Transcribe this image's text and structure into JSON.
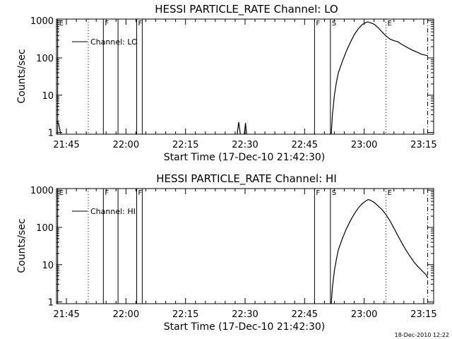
{
  "chart_data": [
    {
      "type": "line",
      "title": "HESSI PARTICLE_RATE Channel: LO",
      "xlabel": "Start Time (17-Dec-10 21:42:30)",
      "ylabel": "Counts/sec",
      "x_unit": "minutes since 21:42:30",
      "xlim": [
        0,
        95
      ],
      "ylim": [
        0.9,
        1100
      ],
      "yscale": "log",
      "grid": false,
      "legend": {
        "position": "top-left",
        "entries": [
          "Channel: LO"
        ]
      },
      "x_ticks": [
        {
          "x": 2.5,
          "label": "21:45"
        },
        {
          "x": 17.5,
          "label": "22:00"
        },
        {
          "x": 32.5,
          "label": "22:15"
        },
        {
          "x": 47.5,
          "label": "22:30"
        },
        {
          "x": 62.5,
          "label": "22:45"
        },
        {
          "x": 77.5,
          "label": "23:00"
        },
        {
          "x": 92.5,
          "label": "23:15"
        }
      ],
      "y_ticks": [
        {
          "y": 1,
          "label": "1"
        },
        {
          "x": 0,
          "y": 10,
          "label": "10"
        },
        {
          "y": 100,
          "label": "100"
        },
        {
          "y": 1000,
          "label": "1000"
        }
      ],
      "markers": [
        {
          "x": 0.3,
          "label": "E",
          "style": "solid"
        },
        {
          "x": 8.0,
          "label": "",
          "style": "dotted"
        },
        {
          "x": 11.8,
          "label": "F",
          "style": "solid"
        },
        {
          "x": 15.5,
          "label": "",
          "style": "solid"
        },
        {
          "x": 20.2,
          "label": "F",
          "style": "solid"
        },
        {
          "x": 21.6,
          "label": "",
          "style": "solid"
        },
        {
          "x": 65.0,
          "label": "F",
          "style": "solid"
        },
        {
          "x": 69.0,
          "label": "S",
          "style": "solid"
        },
        {
          "x": 83.0,
          "label": "E",
          "style": "dotted"
        },
        {
          "x": 93.5,
          "label": "",
          "style": "dashdot"
        }
      ],
      "series": [
        {
          "name": "Channel: LO",
          "segments": [
            [
              [
                0,
                1.8
              ],
              [
                0.5,
                1.8
              ],
              [
                0.9,
                1.1
              ],
              [
                1.1,
                0.9
              ]
            ],
            [
              [
                45.5,
                0.9
              ],
              [
                45.9,
                1.9
              ],
              [
                46.3,
                0.9
              ]
            ],
            [
              [
                47.3,
                0.9
              ],
              [
                47.6,
                1.8
              ],
              [
                47.9,
                0.9
              ]
            ],
            [
              [
                69.2,
                0.9
              ],
              [
                69.5,
                3
              ],
              [
                70,
                10
              ],
              [
                70.5,
                22
              ],
              [
                71,
                40
              ],
              [
                72,
                80
              ],
              [
                73,
                150
              ],
              [
                74,
                260
              ],
              [
                75,
                420
              ],
              [
                76,
                600
              ],
              [
                77,
                780
              ],
              [
                78,
                900
              ],
              [
                78.5,
                920
              ],
              [
                79,
                880
              ],
              [
                80,
                800
              ],
              [
                81,
                650
              ],
              [
                82,
                500
              ],
              [
                83,
                390
              ],
              [
                84,
                320
              ],
              [
                85,
                290
              ],
              [
                86,
                270
              ],
              [
                87,
                230
              ],
              [
                88,
                200
              ],
              [
                89,
                175
              ],
              [
                90,
                155
              ],
              [
                91,
                140
              ],
              [
                92,
                125
              ],
              [
                93,
                118
              ],
              [
                93.5,
                115
              ]
            ]
          ]
        }
      ]
    },
    {
      "type": "line",
      "title": "HESSI PARTICLE_RATE Channel: HI",
      "xlabel": "Start Time (17-Dec-10 21:42:30)",
      "ylabel": "Counts/sec",
      "x_unit": "minutes since 21:42:30",
      "xlim": [
        0,
        95
      ],
      "ylim": [
        0.9,
        1100
      ],
      "yscale": "log",
      "grid": false,
      "legend": {
        "position": "top-left",
        "entries": [
          "Channel: HI"
        ]
      },
      "x_ticks": [
        {
          "x": 2.5,
          "label": "21:45"
        },
        {
          "x": 17.5,
          "label": "22:00"
        },
        {
          "x": 32.5,
          "label": "22:15"
        },
        {
          "x": 47.5,
          "label": "22:30"
        },
        {
          "x": 62.5,
          "label": "22:45"
        },
        {
          "x": 77.5,
          "label": "23:00"
        },
        {
          "x": 92.5,
          "label": "23:15"
        }
      ],
      "y_ticks": [
        {
          "y": 1,
          "label": "1"
        },
        {
          "y": 10,
          "label": "10"
        },
        {
          "y": 100,
          "label": "100"
        },
        {
          "y": 1000,
          "label": "1000"
        }
      ],
      "markers": [
        {
          "x": 0.3,
          "label": "E",
          "style": "solid"
        },
        {
          "x": 8.0,
          "label": "",
          "style": "dotted"
        },
        {
          "x": 11.8,
          "label": "F",
          "style": "solid"
        },
        {
          "x": 15.5,
          "label": "",
          "style": "solid"
        },
        {
          "x": 20.2,
          "label": "F",
          "style": "solid"
        },
        {
          "x": 21.6,
          "label": "",
          "style": "solid"
        },
        {
          "x": 65.0,
          "label": "F",
          "style": "solid"
        },
        {
          "x": 69.0,
          "label": "S",
          "style": "solid"
        },
        {
          "x": 83.0,
          "label": "E",
          "style": "dotted"
        },
        {
          "x": 93.5,
          "label": "",
          "style": "dashdot"
        }
      ],
      "series": [
        {
          "name": "Channel: HI",
          "segments": [
            [
              [
                69.2,
                0.9
              ],
              [
                69.5,
                2.5
              ],
              [
                70,
                7
              ],
              [
                70.5,
                14
              ],
              [
                71,
                25
              ],
              [
                72,
                50
              ],
              [
                73,
                90
              ],
              [
                74,
                150
              ],
              [
                75,
                230
              ],
              [
                76,
                330
              ],
              [
                77,
                430
              ],
              [
                78,
                520
              ],
              [
                78.5,
                560
              ],
              [
                79,
                540
              ],
              [
                80,
                470
              ],
              [
                81,
                380
              ],
              [
                82,
                300
              ],
              [
                83,
                220
              ],
              [
                84,
                150
              ],
              [
                85,
                95
              ],
              [
                86,
                60
              ],
              [
                87,
                38
              ],
              [
                88,
                25
              ],
              [
                89,
                17
              ],
              [
                90,
                12
              ],
              [
                91,
                9
              ],
              [
                92,
                7
              ],
              [
                93,
                5.5
              ],
              [
                93.5,
                4.5
              ]
            ]
          ]
        }
      ]
    }
  ],
  "footer": {
    "timestamp": "18-Dec-2010 12:22"
  }
}
